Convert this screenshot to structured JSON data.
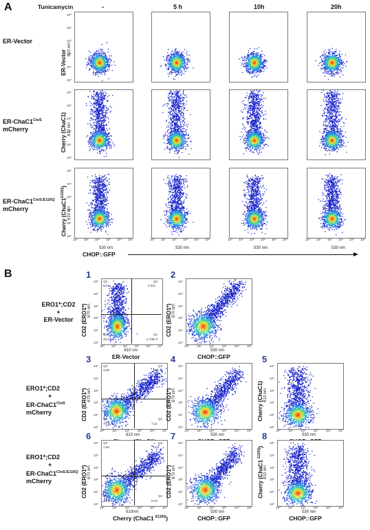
{
  "panel_a": {
    "letter": "A",
    "tunicamycin_label": "Tunicamycin",
    "columns": [
      "-",
      "5 h",
      "10h",
      "20h"
    ],
    "rows": [
      {
        "label_line1": "ER-Vector",
        "label_line2": "",
        "ylabel_main": "ER-Vector",
        "ylabel_unit": "610 nm"
      },
      {
        "label_line1": "ER-ChaC1",
        "label_sup1": "CtoS",
        "label_line2": "mCherry",
        "ylabel_main": "Cherry (ChaC1)",
        "ylabel_unit": "610 nm"
      },
      {
        "label_line1": "ER-ChaC1",
        "label_sup1": "CtoS;E116Q",
        "label_line2": "mCherry",
        "ylabel_main": "Cherry (ChaC1",
        "ylabel_sup": "E116Q",
        "ylabel_close": ")",
        "ylabel_unit": "610 nm"
      }
    ],
    "x_unit": "530 nm",
    "x_axis_label": "CHOP::GFP",
    "ticks": [
      "10⁰",
      "10¹",
      "10²",
      "10³",
      "10⁴",
      "10⁵"
    ]
  },
  "panel_b": {
    "letter": "B",
    "row_labels": [
      {
        "l1": "ERO1*;CD2",
        "l2": "+",
        "l3": "ER-Vector",
        "l3_sup": "",
        "l4": ""
      },
      {
        "l1": "ERO1*;CD2",
        "l2": "+",
        "l3": "ER-ChaC1",
        "l3_sup": "CtoS",
        "l4": "mCherry"
      },
      {
        "l1": "ERO1*;CD2",
        "l2": "+",
        "l3": "ER-ChaC1",
        "l3_sup": "CtoS;E116Q",
        "l4": "mCherry"
      }
    ],
    "plots": [
      {
        "num": "1",
        "ylabel": "CD2 (ERO1*)",
        "yunit": "670 nm",
        "xunit": "610 nm",
        "xlabel": "ER-Vector",
        "q": {
          "Q3": "Q3",
          "Q3v": "54.5",
          "Q2": "Q2",
          "Q2v": "0.011",
          "Q4": "Q4",
          "Q4v": "45.5",
          "Q1": "Q1",
          "Q1v": "2.73E-3"
        }
      },
      {
        "num": "2",
        "ylabel": "CD2 (ERO1*)",
        "yunit": "670 nm",
        "xunit": "530 nm",
        "xlabel": "CHOP::GFP"
      },
      {
        "num": "3",
        "ylabel": "CD2 (ERO1*)",
        "yunit": "670 nm",
        "xunit": "610 nm",
        "xlabel": "Cherry (ChaC1)",
        "q": {
          "Q3": "Q3",
          "Q3v": "3.65",
          "Q2": "Q2",
          "Q2v": "20.3",
          "Q4": "Q4",
          "Q4v": "70.1",
          "Q1": "Q1",
          "Q1v": "7.21"
        }
      },
      {
        "num": "4",
        "ylabel": "CD2 (ERO1*)",
        "yunit": "670 nm",
        "xunit": "530 nm",
        "xlabel": "CHOP::GFP"
      },
      {
        "num": "5",
        "ylabel": "Cherry (ChaC1)",
        "yunit": "610 nm",
        "xunit": "530 nm",
        "xlabel": "CHOP::GFP"
      },
      {
        "num": "6",
        "ylabel": "CD2 (ERO1*)",
        "yunit": "670 nm",
        "xunit": "610nm",
        "xlabel": "Cherry (ChaC1 ",
        "xlabel_sup": "E116Q",
        "xlabel_close": ")",
        "q": {
          "Q3": "Q3",
          "Q3v": "1.63",
          "Q2": "Q2",
          "Q2v": "17.8",
          "Q4": "Q4",
          "Q4v": "72.4",
          "Q1": "Q1",
          "Q1v": "8.44"
        }
      },
      {
        "num": "7",
        "ylabel": "CD2 (ERO1*)",
        "yunit": "670 nm",
        "xunit": "530 nm",
        "xlabel": "CHOP::GFP"
      },
      {
        "num": "8",
        "ylabel": "Cherry (ChaC1 ",
        "ylabel_sup": "E116Q",
        "ylabel_close": ")",
        "yunit": "610 nm",
        "xunit": "530 nm",
        "xlabel": "CHOP::GFP"
      }
    ],
    "ticks": [
      "10⁰",
      "10¹",
      "10²",
      "10³",
      "10⁴",
      "10⁵"
    ]
  }
}
